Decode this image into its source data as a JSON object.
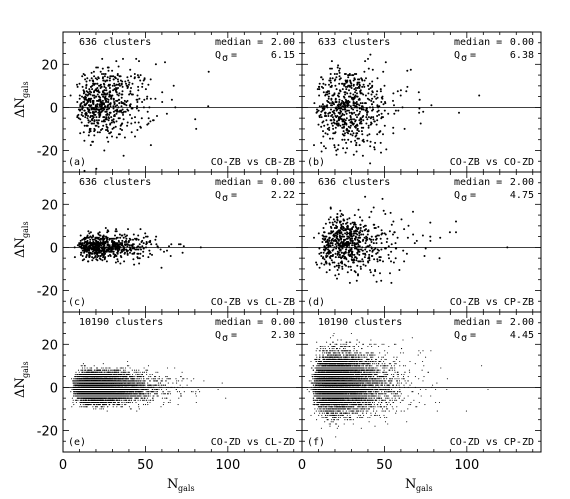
{
  "axes": {
    "xlabel": "N",
    "xlabel_sub": "gals",
    "ylabel": "ΔN",
    "ylabel_sub": "gals",
    "xticks": [
      "0",
      "50",
      "100"
    ],
    "yticks": [
      "20",
      "0",
      "-20"
    ]
  },
  "chart_data": [
    {
      "type": "scatter",
      "panel": "(a)",
      "clusters": "636 clusters",
      "median_label": "median =",
      "median": "2.00",
      "q_label": "Q",
      "q_sub": "σ",
      "q_eq": "=",
      "q": "6.15",
      "comparison": "CO-ZB vs CB-ZB",
      "xlim": [
        0,
        145
      ],
      "ylim": [
        -30,
        35
      ],
      "n_points": 636,
      "x_dist": {
        "center": 25,
        "min": 3,
        "max": 125
      },
      "y_spread": 7,
      "y_center": 2
    },
    {
      "type": "scatter",
      "panel": "(b)",
      "clusters": "633 clusters",
      "median_label": "median =",
      "median": "0.00",
      "q_label": "Q",
      "q_sub": "σ",
      "q_eq": "=",
      "q": "6.38",
      "comparison": "CO-ZB vs CO-ZD",
      "xlim": [
        0,
        145
      ],
      "ylim": [
        -30,
        35
      ],
      "n_points": 633,
      "x_dist": {
        "center": 28,
        "min": 3,
        "max": 125
      },
      "y_spread": 8,
      "y_center": 0
    },
    {
      "type": "scatter",
      "panel": "(c)",
      "clusters": "636 clusters",
      "median_label": "median =",
      "median": "0.00",
      "q_label": "Q",
      "q_sub": "σ",
      "q_eq": "=",
      "q": "2.22",
      "comparison": "CO-ZB vs CL-ZB",
      "xlim": [
        0,
        145
      ],
      "ylim": [
        -30,
        35
      ],
      "n_points": 636,
      "x_dist": {
        "center": 25,
        "min": 3,
        "max": 130
      },
      "y_spread": 2.5,
      "y_center": 0.5
    },
    {
      "type": "scatter",
      "panel": "(d)",
      "clusters": "636 clusters",
      "median_label": "median =",
      "median": "2.00",
      "q_label": "Q",
      "q_sub": "σ",
      "q_eq": "=",
      "q": "4.75",
      "comparison": "CO-ZB vs CP-ZB",
      "xlim": [
        0,
        145
      ],
      "ylim": [
        -30,
        35
      ],
      "n_points": 636,
      "x_dist": {
        "center": 28,
        "min": 3,
        "max": 125
      },
      "y_spread": 5.5,
      "y_center": 2
    },
    {
      "type": "scatter",
      "panel": "(e)",
      "clusters": "10190 clusters",
      "median_label": "median =",
      "median": "0.00",
      "q_label": "Q",
      "q_sub": "σ",
      "q_eq": "=",
      "q": "2.30",
      "comparison": "CO-ZD vs CL-ZD",
      "xlim": [
        0,
        145
      ],
      "ylim": [
        -30,
        35
      ],
      "n_points": 10190,
      "x_dist": {
        "center": 22,
        "min": 2,
        "max": 100
      },
      "y_spread": 2.8,
      "y_center": 0
    },
    {
      "type": "scatter",
      "panel": "(f)",
      "clusters": "10190 clusters",
      "median_label": "median =",
      "median": "2.00",
      "q_label": "Q",
      "q_sub": "σ",
      "q_eq": "=",
      "q": "4.45",
      "comparison": "CO-ZD vs CP-ZD",
      "xlim": [
        0,
        145
      ],
      "ylim": [
        -30,
        35
      ],
      "n_points": 10190,
      "x_dist": {
        "center": 22,
        "min": 2,
        "max": 125
      },
      "y_spread": 5.5,
      "y_center": 2
    }
  ]
}
